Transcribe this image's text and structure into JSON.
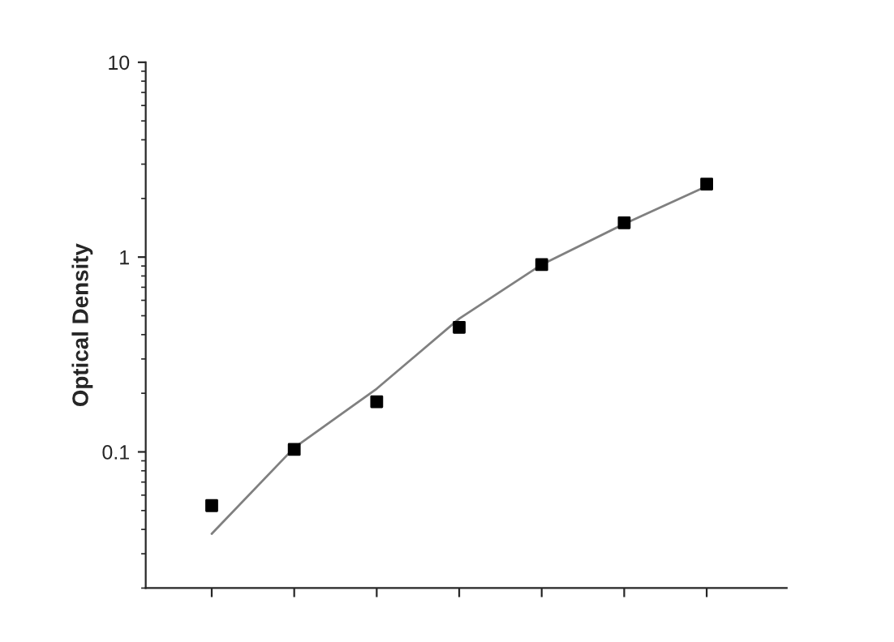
{
  "chart_data": {
    "type": "scatter",
    "ylabel": "Optical Density",
    "log": "y",
    "ylim": [
      0.02,
      10
    ],
    "yticks": [
      0.1,
      1,
      10
    ],
    "categories": [
      null,
      null,
      null,
      null,
      null,
      null,
      null
    ],
    "series": [
      {
        "type": "line",
        "color": "#808080",
        "marker": "none",
        "line_style": "solid",
        "values": [
          0.038,
          0.105,
          0.211,
          0.483,
          0.915,
          1.48,
          2.31
        ]
      },
      {
        "color": "#000000",
        "marker": "square",
        "values": [
          0.053,
          0.103,
          0.181,
          0.436,
          0.915,
          1.5,
          2.37
        ]
      }
    ],
    "tick_labels": "y",
    "grid": false,
    "legend": false
  }
}
